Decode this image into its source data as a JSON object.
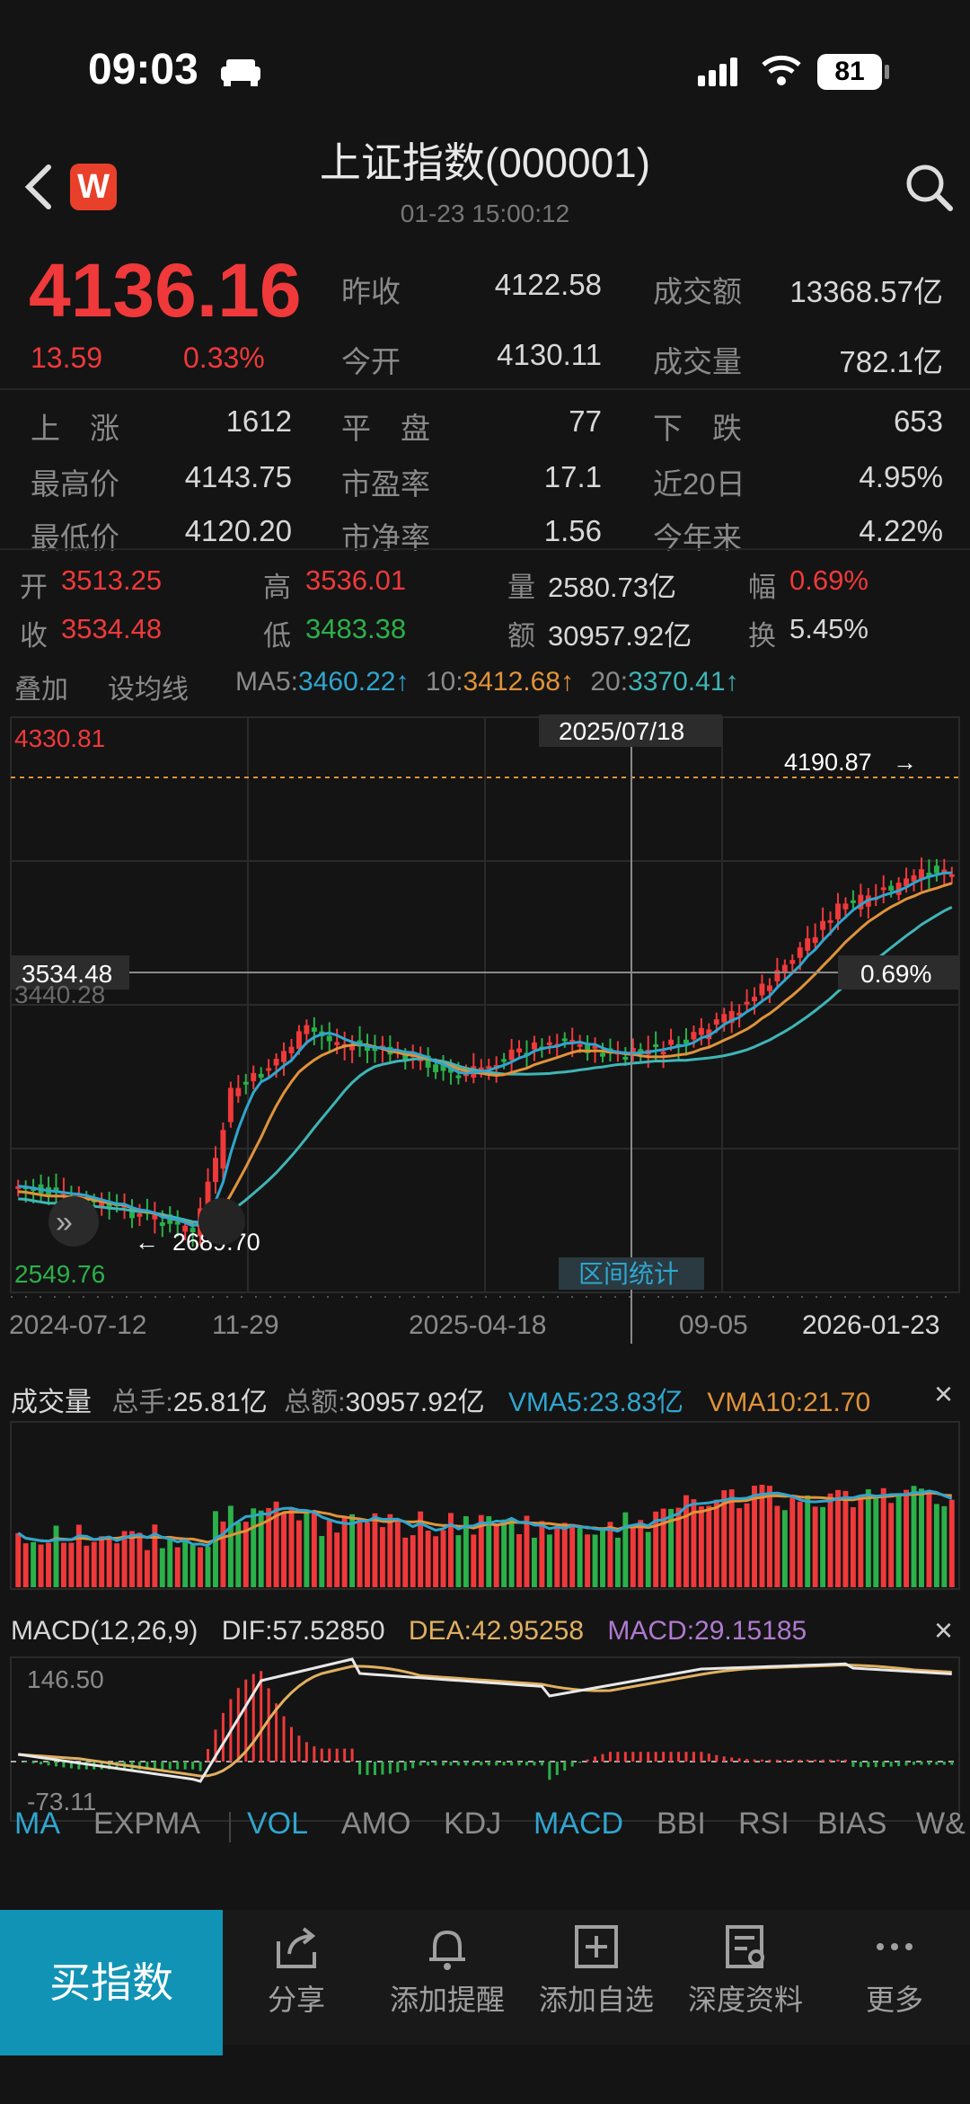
{
  "status_bar": {
    "time": "09:03",
    "battery": "81"
  },
  "header": {
    "title": "上证指数(000001)",
    "timestamp": "01-23 15:00:12",
    "back_icon": "chevron-left-icon",
    "logo_text": "W",
    "search_icon": "search-icon"
  },
  "quote": {
    "price": "4136.16",
    "change": "13.59",
    "change_pct": "0.33%",
    "prev_close_label": "昨收",
    "prev_close": "4122.58",
    "turnover_label": "成交额",
    "turnover": "13368.57亿",
    "open_label": "今开",
    "open": "4130.11",
    "volume_label": "成交量",
    "volume": "782.1亿"
  },
  "breadth": {
    "up_label": "上　涨",
    "up": "1612",
    "flat_label": "平　盘",
    "flat": "77",
    "down_label": "下　跌",
    "down": "653",
    "high_label": "最高价",
    "high": "4143.75",
    "pe_label": "市盈率",
    "pe": "17.1",
    "d20_label": "近20日",
    "d20": "4.95%",
    "low_label": "最低价",
    "low": "4120.20",
    "pb_label": "市净率",
    "pb": "1.56",
    "ytd_label": "今年来",
    "ytd": "4.22%"
  },
  "selected_bar": {
    "open_label": "开",
    "open": "3513.25",
    "high_label": "高",
    "high": "3536.01",
    "vol_label": "量",
    "vol": "2580.73亿",
    "amp_label": "幅",
    "amp": "0.69%",
    "close_label": "收",
    "close": "3534.48",
    "low_label": "低",
    "low": "3483.38",
    "amt_label": "额",
    "amt": "30957.92亿",
    "turn_label": "换",
    "turn": "5.45%"
  },
  "ma_bar": {
    "overlay": "叠加",
    "set_ma": "设均线",
    "ma5_label": "MA5:",
    "ma5": "3460.22↑",
    "ma10_label": "10:",
    "ma10": "3412.68↑",
    "ma20_label": "20:",
    "ma20": "3370.41↑"
  },
  "kline": {
    "top_value": "4330.81",
    "bottom_value": "2549.76",
    "cursor_date": "2025/07/18",
    "cursor_price": "3534.48",
    "cursor_pct": "0.69%",
    "mid_label": "3440.28",
    "max_marker": "4190.87",
    "min_marker": "2689.70",
    "range_stats": "区间统计",
    "dates": [
      "2024-07-12",
      "11-29",
      "2025-04-18",
      "09-05",
      "2026-01-23"
    ]
  },
  "volume_panel": {
    "title": "成交量",
    "total_hands_label": "总手:",
    "total_hands": "25.81亿",
    "total_amt_label": "总额:",
    "total_amt": "30957.92亿",
    "vma5": "VMA5:23.83亿",
    "vma10": "VMA10:21.70"
  },
  "macd_panel": {
    "title": "MACD(12,26,9)",
    "dif": "DIF:57.52850",
    "dea": "DEA:42.95258",
    "macd": "MACD:29.15185",
    "top_value": "146.50",
    "bottom_value": "-73.11"
  },
  "indicator_tabs": [
    "MA",
    "EXPMA",
    "VOL",
    "AMO",
    "KDJ",
    "MACD",
    "BBI",
    "RSI",
    "BIAS",
    "W&"
  ],
  "actions": {
    "buy": "买指数",
    "share": "分享",
    "alert": "添加提醒",
    "watch": "添加自选",
    "research": "深度资料",
    "more": "更多"
  },
  "colors": {
    "up": "#f0393a",
    "down": "#2bb04a",
    "ma5": "#2fa6cf",
    "ma10": "#e0933a",
    "ma20": "#3fb5b5",
    "accent": "#1193b5"
  }
}
